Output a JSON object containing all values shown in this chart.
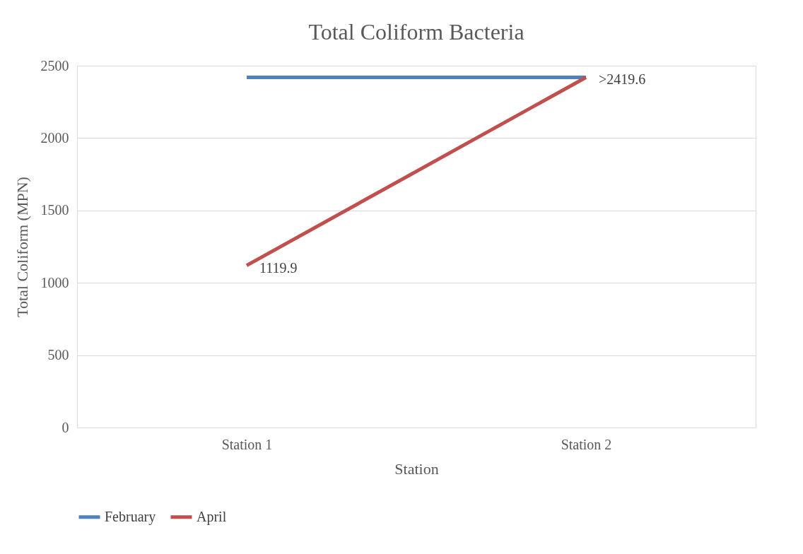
{
  "chart_data": {
    "type": "line",
    "title": "Total Coliform Bacteria",
    "xlabel": "Station",
    "ylabel": "Total Coliform (MPN)",
    "categories": [
      "Station 1",
      "Station 2"
    ],
    "series": [
      {
        "name": "February",
        "color": "#4f81bd",
        "values": [
          2419.6,
          2419.6
        ]
      },
      {
        "name": "April",
        "color": "#c0504d",
        "values": [
          1119.9,
          2419.6
        ],
        "value_labels": [
          "1119.9",
          ">2419.6"
        ]
      }
    ],
    "ylim": [
      0,
      2500
    ],
    "yticks": [
      0,
      500,
      1000,
      1500,
      2000,
      2500
    ],
    "grid": "y",
    "legend": "bottom",
    "marker": "none",
    "line_style": "solid"
  }
}
